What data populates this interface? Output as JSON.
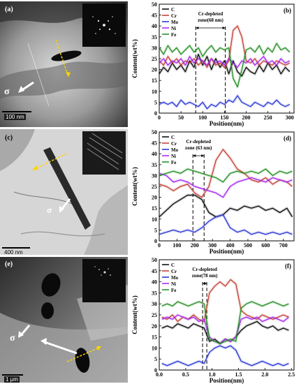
{
  "panels_left": [
    {
      "tag": "(a)",
      "sigma": "σ",
      "scale": "100 nm"
    },
    {
      "tag": "(c)",
      "sigma": "σ",
      "scale": "400 nm"
    },
    {
      "tag": "(e)",
      "sigma": "σ",
      "scale": "1 μm"
    }
  ],
  "chart_data": [
    {
      "type": "line",
      "tag": "(b)",
      "xlabel": "Position(nm)",
      "ylabel": "Content(wt%)",
      "xlim": [
        0,
        310
      ],
      "ylim": [
        0,
        50
      ],
      "xticks": [
        0,
        50,
        100,
        150,
        200,
        250,
        300
      ],
      "yticks": [
        0,
        5,
        10,
        15,
        20,
        25,
        30,
        35,
        40,
        45,
        50
      ],
      "legend": [
        "C",
        "Cr",
        "Mo",
        "Ni",
        "Fe"
      ],
      "legend_position": "top-left",
      "annotation": "Cr-depleted zone(68 nm)",
      "zone": [
        84,
        152
      ],
      "colors": {
        "C": "#000000",
        "Cr": "#c0392b",
        "Mo": "#1f2fd1",
        "Ni": "#a020f0",
        "Fe": "#1a8a1a"
      },
      "x": [
        0,
        10,
        20,
        30,
        40,
        50,
        60,
        70,
        80,
        90,
        100,
        110,
        120,
        130,
        140,
        150,
        160,
        170,
        180,
        190,
        200,
        210,
        220,
        230,
        240,
        250,
        260,
        270,
        280,
        290,
        300
      ],
      "series": [
        {
          "name": "C",
          "values": [
            18,
            21,
            19,
            23,
            20,
            22,
            19,
            24,
            21,
            27,
            22,
            26,
            20,
            25,
            21,
            24,
            18,
            24,
            19,
            17,
            21,
            19,
            18,
            22,
            19,
            23,
            20,
            22,
            18,
            21,
            19
          ]
        },
        {
          "name": "Cr",
          "values": [
            24,
            22,
            26,
            23,
            25,
            22,
            24,
            23,
            25,
            22,
            24,
            21,
            25,
            22,
            23,
            21,
            24,
            38,
            40,
            35,
            24,
            23,
            25,
            22,
            24,
            23,
            22,
            24,
            23,
            22,
            23
          ]
        },
        {
          "name": "Mo",
          "values": [
            4,
            5,
            4,
            5,
            3,
            6,
            4,
            5,
            4,
            3,
            5,
            2,
            4,
            3,
            5,
            4,
            6,
            5,
            8,
            5,
            4,
            3,
            5,
            4,
            3,
            5,
            4,
            6,
            4,
            3,
            4
          ]
        },
        {
          "name": "Ni",
          "values": [
            23,
            25,
            22,
            24,
            23,
            25,
            22,
            26,
            23,
            25,
            24,
            22,
            25,
            23,
            24,
            22,
            25,
            23,
            21,
            24,
            23,
            25,
            22,
            24,
            26,
            23,
            24,
            22,
            25,
            23,
            24
          ]
        },
        {
          "name": "Fe",
          "values": [
            30,
            27,
            31,
            28,
            30,
            27,
            29,
            31,
            28,
            30,
            26,
            29,
            31,
            28,
            30,
            29,
            30,
            16,
            12,
            20,
            29,
            30,
            28,
            31,
            27,
            30,
            28,
            32,
            29,
            30,
            28
          ]
        }
      ]
    },
    {
      "type": "line",
      "tag": "(d)",
      "xlabel": "Position(nm)",
      "ylabel": "Content(wt%)",
      "xlim": [
        0,
        760
      ],
      "ylim": [
        0,
        50
      ],
      "xticks": [
        0,
        100,
        200,
        300,
        400,
        500,
        600,
        700
      ],
      "yticks": [
        0,
        5,
        10,
        15,
        20,
        25,
        30,
        35,
        40,
        45,
        50
      ],
      "legend": [
        "C",
        "Cr",
        "Mo",
        "Ni",
        "Fe"
      ],
      "legend_position": "top-left",
      "annotation": "Cr-depleted zone (63 nm)",
      "zone": [
        190,
        253
      ],
      "colors": {
        "C": "#000000",
        "Cr": "#c0392b",
        "Mo": "#1f2fd1",
        "Ni": "#a020f0",
        "Fe": "#1a8a1a"
      },
      "x": [
        0,
        40,
        80,
        120,
        160,
        200,
        240,
        280,
        320,
        360,
        400,
        440,
        480,
        520,
        560,
        600,
        640,
        680,
        720,
        750
      ],
      "series": [
        {
          "name": "C",
          "values": [
            11,
            14,
            17,
            19,
            21,
            21,
            19,
            13,
            11,
            12,
            15,
            14,
            16,
            15,
            16,
            14,
            15,
            13,
            15,
            11
          ]
        },
        {
          "name": "Cr",
          "values": [
            26,
            25,
            23,
            25,
            26,
            22,
            20,
            25,
            37,
            42,
            38,
            33,
            31,
            28,
            27,
            29,
            26,
            28,
            27,
            25
          ]
        },
        {
          "name": "Mo",
          "values": [
            3,
            4,
            5,
            4,
            5,
            4,
            6,
            9,
            11,
            12,
            6,
            4,
            5,
            3,
            4,
            3,
            4,
            3,
            4,
            3
          ]
        },
        {
          "name": "Ni",
          "values": [
            31,
            30,
            27,
            28,
            27,
            25,
            24,
            23,
            22,
            20,
            25,
            27,
            28,
            29,
            28,
            27,
            29,
            28,
            27,
            28
          ]
        },
        {
          "name": "Fe",
          "values": [
            30,
            31,
            32,
            31,
            33,
            32,
            31,
            30,
            29,
            27,
            31,
            32,
            31,
            32,
            31,
            33,
            30,
            32,
            31,
            32
          ]
        }
      ]
    },
    {
      "type": "line",
      "tag": "(f)",
      "xlabel": "Position(nm)",
      "ylabel": "Content(wt%)",
      "xlim": [
        0,
        2.55
      ],
      "ylim": [
        0,
        50
      ],
      "xticks": [
        0.0,
        0.5,
        1.0,
        1.5,
        2.0,
        2.5
      ],
      "tick_labels_x": [
        "0.0",
        "0.5",
        "1.0",
        "1.5",
        "2.0",
        "2.5"
      ],
      "yticks": [
        0,
        5,
        10,
        15,
        20,
        25,
        30,
        35,
        40,
        45,
        50
      ],
      "legend": [
        "C",
        "Cr",
        "Mo",
        "Ni",
        "Fe"
      ],
      "legend_position": "top-left",
      "annotation": "Cr-depleted zone(78 nm)",
      "zone": [
        0.82,
        0.9
      ],
      "colors": {
        "C": "#000000",
        "Cr": "#c0392b",
        "Mo": "#1f2fd1",
        "Ni": "#a020f0",
        "Fe": "#1a8a1a"
      },
      "x": [
        0.05,
        0.15,
        0.25,
        0.35,
        0.45,
        0.55,
        0.65,
        0.75,
        0.85,
        0.95,
        1.05,
        1.15,
        1.25,
        1.35,
        1.45,
        1.55,
        1.65,
        1.75,
        1.85,
        1.95,
        2.05,
        2.15,
        2.25,
        2.35,
        2.45
      ],
      "series": [
        {
          "name": "C",
          "values": [
            19,
            20,
            19,
            21,
            20,
            19,
            21,
            20,
            19,
            13,
            14,
            12,
            14,
            13,
            15,
            18,
            20,
            21,
            22,
            20,
            19,
            20,
            18,
            19,
            18
          ]
        },
        {
          "name": "Cr",
          "values": [
            24,
            23,
            25,
            22,
            24,
            23,
            25,
            23,
            22,
            35,
            38,
            40,
            38,
            41,
            39,
            27,
            25,
            24,
            23,
            25,
            24,
            23,
            24,
            25,
            24
          ]
        },
        {
          "name": "Mo",
          "values": [
            3,
            2,
            3,
            4,
            3,
            2,
            3,
            4,
            3,
            8,
            10,
            11,
            10,
            11,
            9,
            4,
            3,
            2,
            3,
            4,
            3,
            2,
            3,
            2,
            3
          ]
        },
        {
          "name": "Ni",
          "values": [
            23,
            24,
            23,
            25,
            24,
            23,
            24,
            22,
            23,
            15,
            13,
            12,
            14,
            13,
            15,
            23,
            24,
            23,
            24,
            22,
            23,
            24,
            23,
            22,
            24
          ]
        },
        {
          "name": "Fe",
          "values": [
            29,
            30,
            29,
            31,
            30,
            29,
            30,
            31,
            30,
            14,
            13,
            12,
            13,
            14,
            13,
            28,
            30,
            31,
            30,
            29,
            30,
            31,
            30,
            29,
            30
          ]
        }
      ]
    }
  ]
}
